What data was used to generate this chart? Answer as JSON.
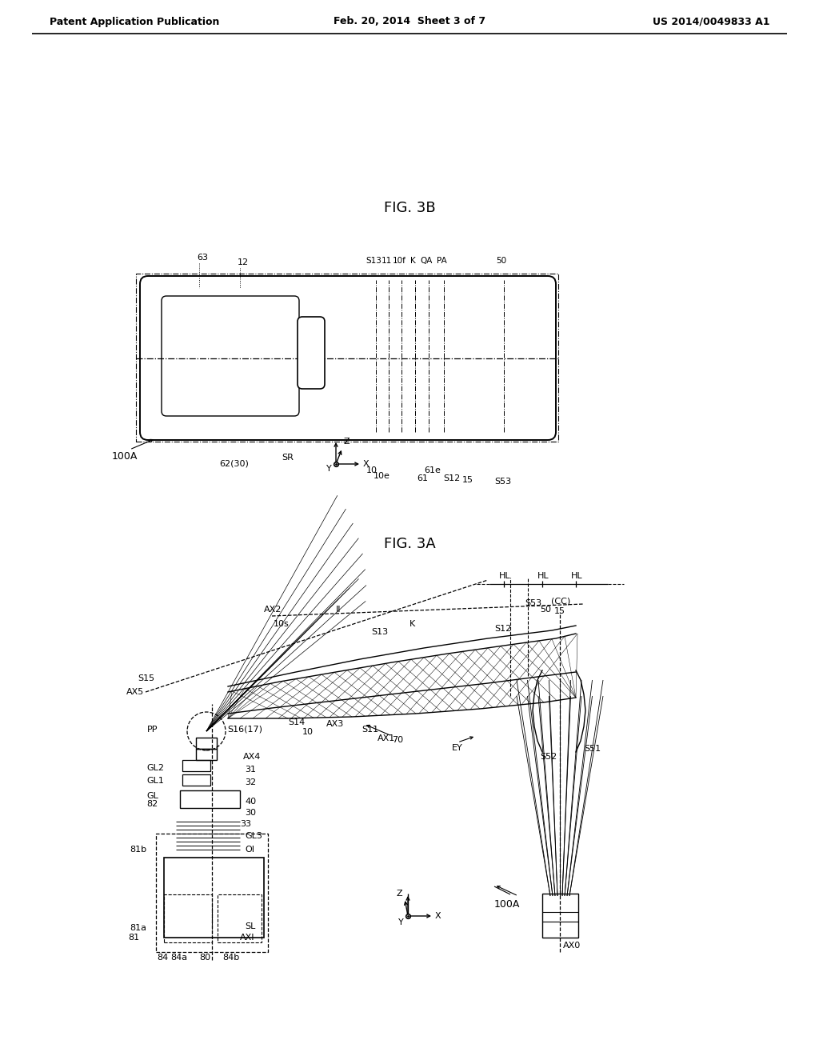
{
  "bg_color": "#ffffff",
  "lc": "#000000",
  "header_left": "Patent Application Publication",
  "header_center": "Feb. 20, 2014  Sheet 3 of 7",
  "header_right": "US 2014/0049833 A1",
  "fig3a_label": "FIG. 3A",
  "fig3b_label": "FIG. 3B"
}
